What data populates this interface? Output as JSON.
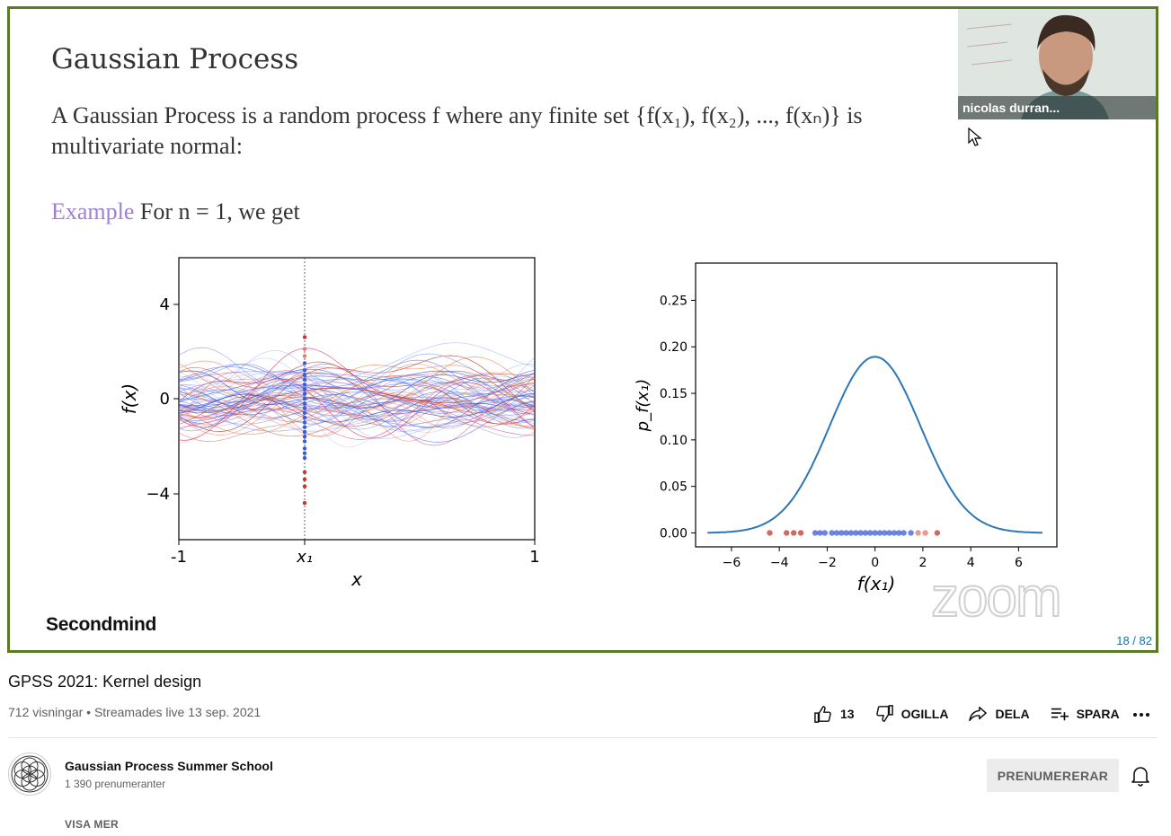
{
  "slide": {
    "title": "Gaussian Process",
    "line1": "A Gaussian Process is a random process f where any finite set {f(x₁), f(x₂), ..., f(xₙ)} is",
    "line2": "multivariate normal:",
    "example_word": "Example",
    "example_rest": " For n = 1, we get",
    "brand": "Secondmind",
    "page_number": "18 / 82"
  },
  "webcam": {
    "name": "nicolas durran..."
  },
  "zoom_watermark": "zoom",
  "left_plot": {
    "ylabel": "f(x)",
    "xlabel": "x",
    "ytick_labels": [
      "4",
      "0",
      "−4"
    ],
    "xtick_labels": [
      "-1",
      "x₁",
      "1"
    ]
  },
  "chart_data": {
    "type": "line",
    "title": "",
    "xlabel": "f(x₁)",
    "ylabel": "p_f(x₁)",
    "xlim": [
      -7.5,
      7.6
    ],
    "ylim": [
      -0.015,
      0.29
    ],
    "xticks": [
      -6,
      -4,
      -2,
      0,
      2,
      4,
      6
    ],
    "xtick_labels": [
      "−6",
      "−4",
      "−2",
      "0",
      "2",
      "4",
      "6"
    ],
    "yticks": [
      0.0,
      0.05,
      0.1,
      0.15,
      0.2,
      0.25
    ],
    "ytick_labels": [
      "0.00",
      "0.05",
      "0.10",
      "0.15",
      "0.20",
      "0.25"
    ],
    "grid": false,
    "series": [
      {
        "x": [
          -7,
          -6,
          -5,
          -4.5,
          -4,
          -3.5,
          -3,
          -2.5,
          -2,
          -1.5,
          -1,
          -0.5,
          0,
          0.5,
          1,
          1.5,
          2,
          2.5,
          3,
          3.5,
          4,
          4.5,
          5,
          6,
          7
        ],
        "y": [
          0.0,
          0.0002,
          0.0013,
          0.0032,
          0.0073,
          0.0152,
          0.0291,
          0.0506,
          0.08,
          0.115,
          0.1503,
          0.1788,
          0.1893,
          0.1788,
          0.1503,
          0.115,
          0.08,
          0.0506,
          0.0291,
          0.0152,
          0.0073,
          0.0032,
          0.0013,
          0.0002,
          0.0
        ],
        "note_color": "#2c77b4"
      }
    ],
    "samples_on_axis": [
      -4.4,
      -3.7,
      -3.4,
      -3.1,
      -2.5,
      -2.3,
      -2.1,
      -1.8,
      -1.6,
      -1.4,
      -1.2,
      -1.0,
      -0.8,
      -0.6,
      -0.4,
      -0.2,
      0.0,
      0.2,
      0.4,
      0.6,
      0.8,
      1.0,
      1.2,
      1.5,
      1.8,
      2.1,
      2.6
    ]
  },
  "video": {
    "title": "GPSS 2021: Kernel design",
    "meta": "712 visningar • Streamades live 13 sep. 2021"
  },
  "actions": {
    "like_count": "13",
    "dislike_label": "OGILLA",
    "share_label": "DELA",
    "save_label": "SPARA"
  },
  "channel": {
    "name": "Gaussian Process Summer School",
    "subscribers": "1 390 prenumeranter",
    "subscribe_label": "PRENUMERERAR",
    "show_more": "VISA MER"
  },
  "colors": {
    "frame_green": "#5a7a23",
    "example_purple": "#a07fd6",
    "curve_blue": "#2c77b4",
    "link_blue": "#0077b3"
  }
}
